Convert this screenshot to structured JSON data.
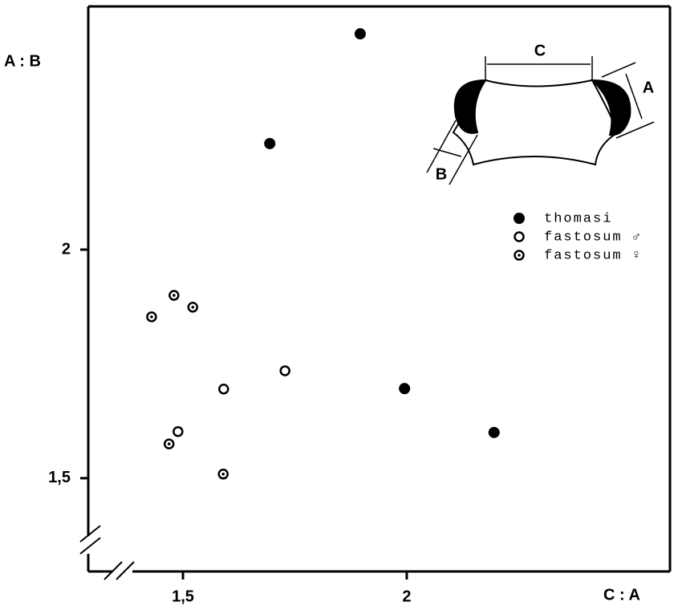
{
  "chart_data": {
    "type": "scatter",
    "x_label": "C : A",
    "y_label": "A : B",
    "xlim": [
      1.2885,
      2.588
    ],
    "ylim": [
      1.296,
      2.532
    ],
    "xticks": [
      {
        "value": 1.5,
        "label": "1,5"
      },
      2
    ],
    "yticks": [
      {
        "value": 1.5,
        "label": "1,5"
      },
      2
    ],
    "inset_labels": [
      "C",
      "A",
      "B"
    ],
    "series": [
      {
        "name": "thomasi",
        "color": "#000000",
        "marker": "filled",
        "x": [
          1.896,
          1.694,
          1.995,
          2.195
        ],
        "values": [
          2.472,
          2.232,
          1.696,
          1.6
        ]
      },
      {
        "name": "fastosum ♂",
        "color": "#000000",
        "marker": "open",
        "x": [
          1.728,
          1.591,
          1.489
        ],
        "values": [
          1.735,
          1.695,
          1.602
        ]
      },
      {
        "name": "fastosum ♀",
        "color": "#000000",
        "marker": "dotted",
        "x": [
          1.43,
          1.48,
          1.522,
          1.59,
          1.469
        ],
        "values": [
          1.853,
          1.9,
          1.874,
          1.509,
          1.575
        ]
      }
    ]
  }
}
